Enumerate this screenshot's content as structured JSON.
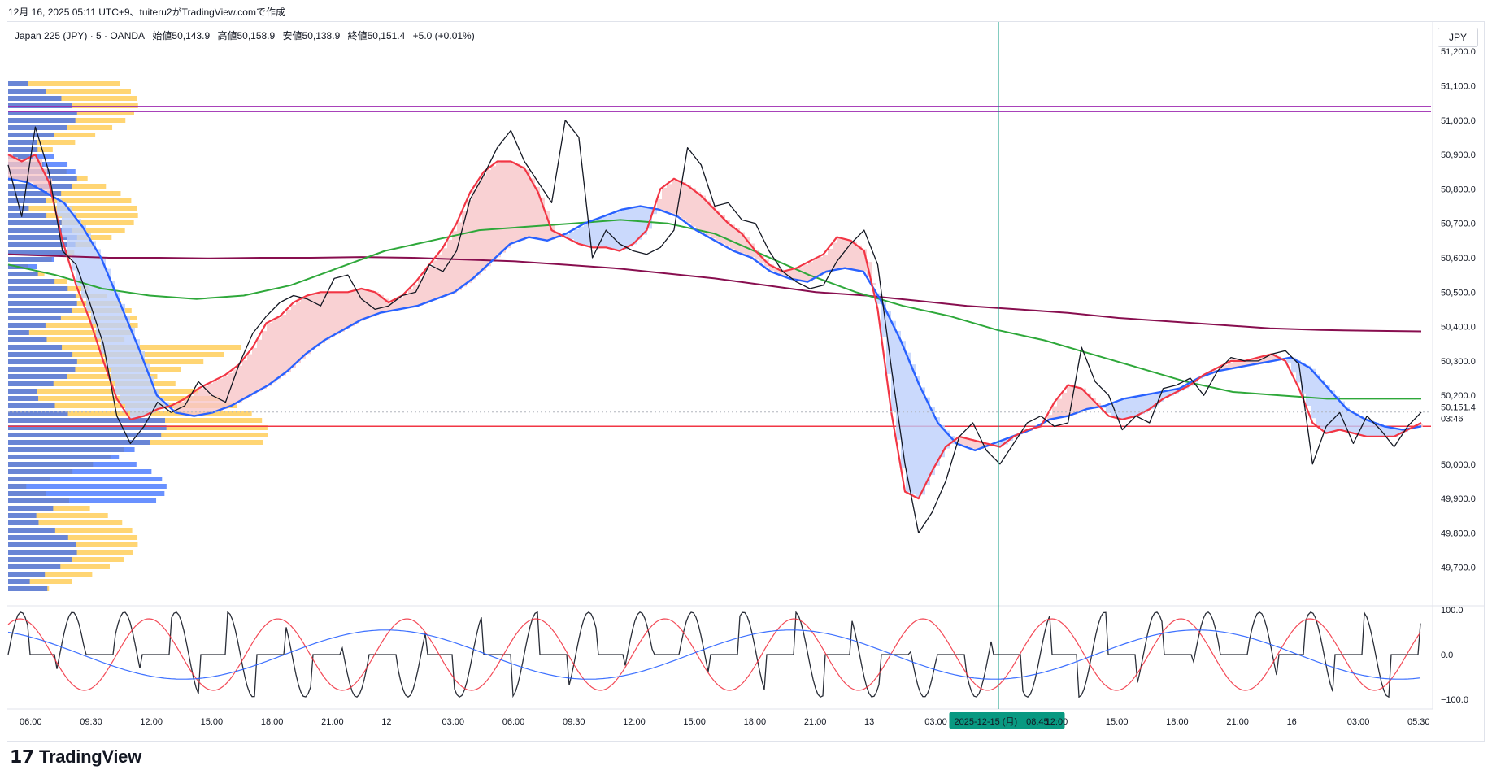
{
  "header": {
    "note": "12月 16, 2025 05:11 UTC+9、tuiteru2がTradingView.comで作成"
  },
  "symbol_bar": {
    "name": "Japan 225 (JPY) · 5 · OANDA",
    "open": "始値50,143.9",
    "high": "高値50,158.9",
    "low": "安値50,138.9",
    "close": "終値50,151.4",
    "change": "+5.0 (+0.01%)"
  },
  "currency": "JPY",
  "footer": {
    "brand": "TradingView",
    "logo_icon": "tradingview-logo-icon"
  },
  "colors": {
    "candle": "#131722",
    "ema_fast": "#f23645",
    "ema_mid": "#2962ff",
    "ma_green": "#2ea83a",
    "ma_maroon": "#880e4f",
    "cloud_up": "#f8c5c8",
    "cloud_down": "#bdd0fb",
    "horizontal_red": "#f23645",
    "horizontal_purple": "#9c27b0",
    "crosshair": "#089981",
    "vp_blue": "#2962ff",
    "vp_yellow": "#ffb300"
  },
  "chart_data": [
    {
      "type": "line",
      "title": "",
      "price_axis": {
        "ticks": [
          "51,200.0",
          "51,100.0",
          "51,000.0",
          "50,900.0",
          "50,800.0",
          "50,700.0",
          "50,600.0",
          "50,500.0",
          "50,400.0",
          "50,300.0",
          "50,200.0",
          "50,000.0",
          "49,900.0",
          "49,800.0",
          "49,700.0"
        ],
        "current_price": "50,151.4",
        "countdown": "03:46",
        "ylim": [
          49600,
          51250
        ]
      },
      "time_axis": {
        "ticks": [
          "06:00",
          "09:30",
          "12:00",
          "15:00",
          "18:00",
          "21:00",
          "12",
          "03:00",
          "06:00",
          "09:30",
          "12:00",
          "15:00",
          "18:00",
          "21:00",
          "13",
          "03:00",
          "2025-12-15 (月)　08:45",
          "12:00",
          "15:00",
          "18:00",
          "21:00",
          "16",
          "03:00",
          "05:30"
        ],
        "crosshair_label": "2025-12-15 (月)　08:45"
      },
      "horizontal_lines": [
        {
          "name": "resistance-purple-1",
          "price": 51040
        },
        {
          "name": "resistance-purple-2",
          "price": 51025
        },
        {
          "name": "support-red",
          "price": 50110
        }
      ],
      "series": [
        {
          "name": "close",
          "values": [
            50870,
            50720,
            50980,
            50850,
            50620,
            50580,
            50470,
            50350,
            50140,
            50060,
            50110,
            50180,
            50150,
            50170,
            50240,
            50200,
            50180,
            50290,
            50380,
            50430,
            50470,
            50490,
            50480,
            50460,
            50540,
            50550,
            50480,
            50450,
            50460,
            50490,
            50500,
            50580,
            50560,
            50620,
            50770,
            50840,
            50920,
            50970,
            50880,
            50820,
            50760,
            51000,
            50950,
            50600,
            50680,
            50640,
            50620,
            50610,
            50630,
            50680,
            50920,
            50870,
            50750,
            50760,
            50710,
            50700,
            50620,
            50560,
            50530,
            50510,
            50520,
            50590,
            50640,
            50680,
            50580,
            50280,
            50000,
            49800,
            49860,
            49950,
            50080,
            50120,
            50040,
            50000,
            50060,
            50120,
            50140,
            50110,
            50120,
            50340,
            50240,
            50200,
            50100,
            50140,
            50120,
            50220,
            50230,
            50250,
            50200,
            50270,
            50310,
            50300,
            50300,
            50320,
            50330,
            50290,
            50000,
            50110,
            50150,
            50060,
            50140,
            50100,
            50050,
            50110,
            50151
          ]
        },
        {
          "name": "ema-fast",
          "values": [
            50900,
            50880,
            50900,
            50820,
            50650,
            50520,
            50420,
            50300,
            50190,
            50130,
            50140,
            50160,
            50170,
            50190,
            50220,
            50240,
            50260,
            50290,
            50340,
            50410,
            50430,
            50470,
            50490,
            50500,
            50500,
            50500,
            50510,
            50500,
            50470,
            50490,
            50530,
            50580,
            50630,
            50700,
            50790,
            50850,
            50880,
            50880,
            50860,
            50790,
            50680,
            50660,
            50640,
            50630,
            50630,
            50620,
            50640,
            50680,
            50800,
            50830,
            50810,
            50780,
            50740,
            50700,
            50670,
            50620,
            50580,
            50560,
            50570,
            50590,
            50610,
            50660,
            50650,
            50620,
            50450,
            50150,
            49920,
            49900,
            49980,
            50050,
            50080,
            50070,
            50060,
            50050,
            50080,
            50100,
            50110,
            50180,
            50230,
            50220,
            50180,
            50140,
            50130,
            50140,
            50160,
            50190,
            50210,
            50230,
            50260,
            50280,
            50300,
            50300,
            50310,
            50320,
            50300,
            50220,
            50120,
            50090,
            50100,
            50090,
            50080,
            50080,
            50080,
            50100,
            50120
          ]
        },
        {
          "name": "ema-mid",
          "values": [
            50830,
            50820,
            50790,
            50760,
            50690,
            50600,
            50470,
            50340,
            50200,
            50150,
            50140,
            50150,
            50170,
            50200,
            50230,
            50270,
            50320,
            50360,
            50390,
            50420,
            50440,
            50450,
            50460,
            50480,
            50500,
            50540,
            50590,
            50640,
            50660,
            50650,
            50670,
            50700,
            50720,
            50740,
            50750,
            50740,
            50720,
            50680,
            50650,
            50620,
            50600,
            50560,
            50540,
            50530,
            50560,
            50570,
            50560,
            50470,
            50360,
            50230,
            50120,
            50060,
            50040,
            50060,
            50080,
            50100,
            50130,
            50140,
            50160,
            50170,
            50190,
            50200,
            50210,
            50220,
            50250,
            50270,
            50280,
            50290,
            50300,
            50310,
            50280,
            50220,
            50160,
            50130,
            50110,
            50100,
            50110
          ]
        },
        {
          "name": "ma-green",
          "values": [
            50580,
            50550,
            50510,
            50490,
            50480,
            50490,
            50520,
            50570,
            50620,
            50650,
            50680,
            50690,
            50700,
            50710,
            50700,
            50670,
            50610,
            50550,
            50500,
            50460,
            50430,
            50390,
            50360,
            50320,
            50280,
            50240,
            50210,
            50200,
            50190,
            50190,
            50190
          ]
        },
        {
          "name": "ma-maroon",
          "values": [
            50610,
            50605,
            50600,
            50600,
            50598,
            50600,
            50600,
            50602,
            50600,
            50595,
            50590,
            50580,
            50570,
            50555,
            50540,
            50520,
            50500,
            50490,
            50475,
            50460,
            50450,
            50440,
            50425,
            50415,
            50405,
            50395,
            50390,
            50388,
            50386
          ]
        }
      ]
    },
    {
      "type": "line",
      "title": "",
      "ylim": [
        -100,
        100
      ],
      "axis_ticks": [
        "100.0",
        "0.0",
        "−100.0"
      ],
      "series": [
        {
          "name": "stoch-k"
        },
        {
          "name": "stoch-d"
        },
        {
          "name": "stoch-slow"
        }
      ]
    }
  ]
}
